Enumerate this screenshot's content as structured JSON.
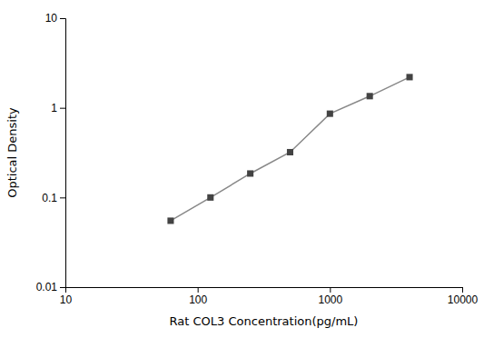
{
  "chart_data": {
    "type": "line",
    "x": [
      62.5,
      125,
      250,
      500,
      1000,
      2000,
      4000
    ],
    "values": [
      0.055,
      0.1,
      0.185,
      0.32,
      0.86,
      1.35,
      2.2
    ],
    "xlabel": "Rat COL3 Concentration(pg/mL)",
    "ylabel": "Optical Density",
    "xlim": [
      10,
      10000
    ],
    "ylim": [
      0.01,
      10
    ],
    "xticks": [
      10,
      100,
      1000,
      10000
    ],
    "yticks": [
      0.01,
      0.1,
      1,
      10
    ],
    "log": true,
    "color": "#888888",
    "marker": "square"
  }
}
